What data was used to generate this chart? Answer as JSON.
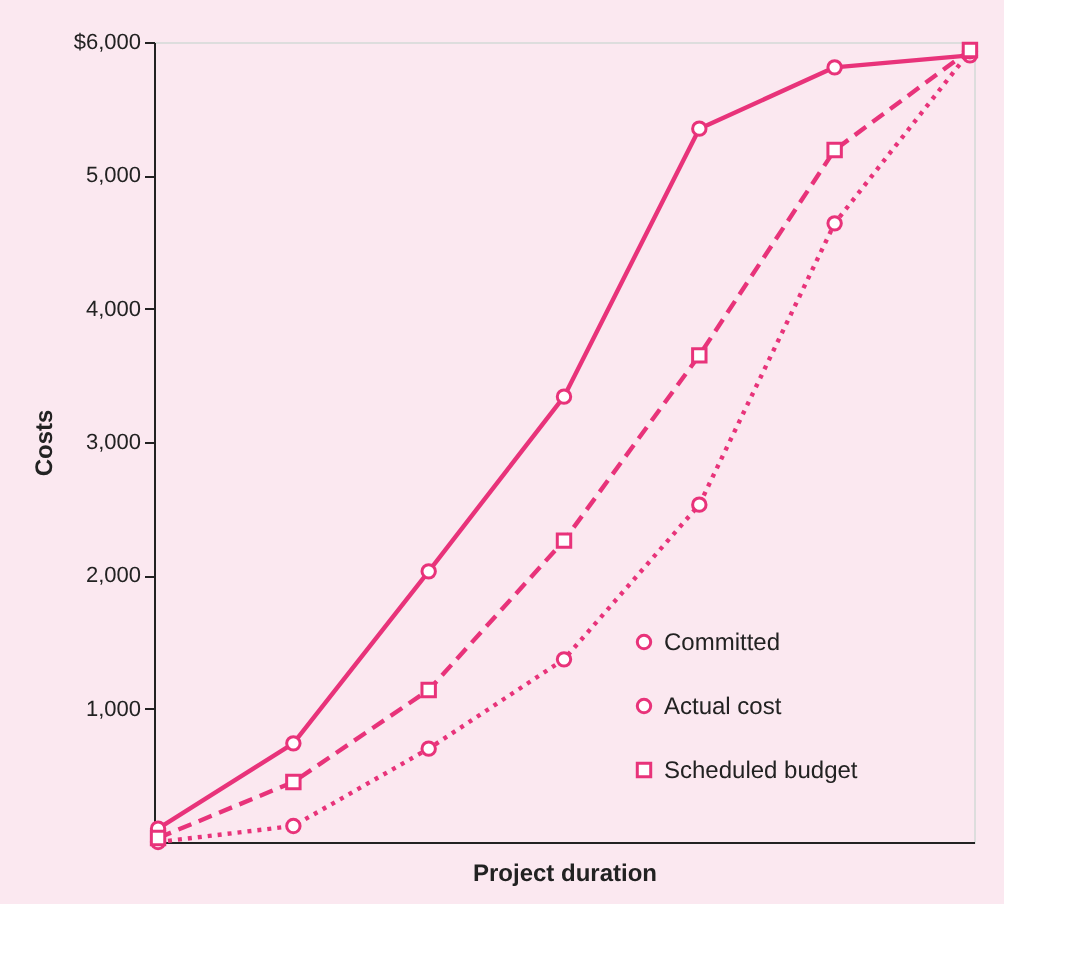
{
  "chart_data": {
    "type": "line",
    "ylabel": "Costs",
    "xlabel": "Project duration",
    "categories": [
      null,
      null,
      null,
      null,
      null,
      null,
      null
    ],
    "series": [
      {
        "name": "Committed",
        "color": "#e8337a",
        "values": [
          100,
          740,
          2030,
          3340,
          5350,
          5810,
          5900
        ],
        "marker": "circle",
        "line_style": "solid"
      },
      {
        "name": "Actual cost",
        "color": "#e8337a",
        "values": [
          0,
          120,
          700,
          1370,
          2530,
          4640,
          5930
        ],
        "marker": "circle",
        "line_style": "dotted"
      },
      {
        "name": "Scheduled budget",
        "color": "#e8337a",
        "values": [
          30,
          450,
          1140,
          2260,
          3650,
          5190,
          5940
        ],
        "marker": "square",
        "line_style": "dashed"
      }
    ],
    "ylim": [
      0,
      6000
    ],
    "yticks": [
      {
        "value": 1000,
        "label": "1,000"
      },
      {
        "value": 2000,
        "label": "2,000"
      },
      {
        "value": 3000,
        "label": "3,000"
      },
      {
        "value": 4000,
        "label": "4,000"
      },
      {
        "value": 5000,
        "label": "5,000"
      },
      {
        "value": 6000,
        "label": "$6,000"
      }
    ],
    "grid": false,
    "legend": "bottom right",
    "tick_labels": "y"
  }
}
